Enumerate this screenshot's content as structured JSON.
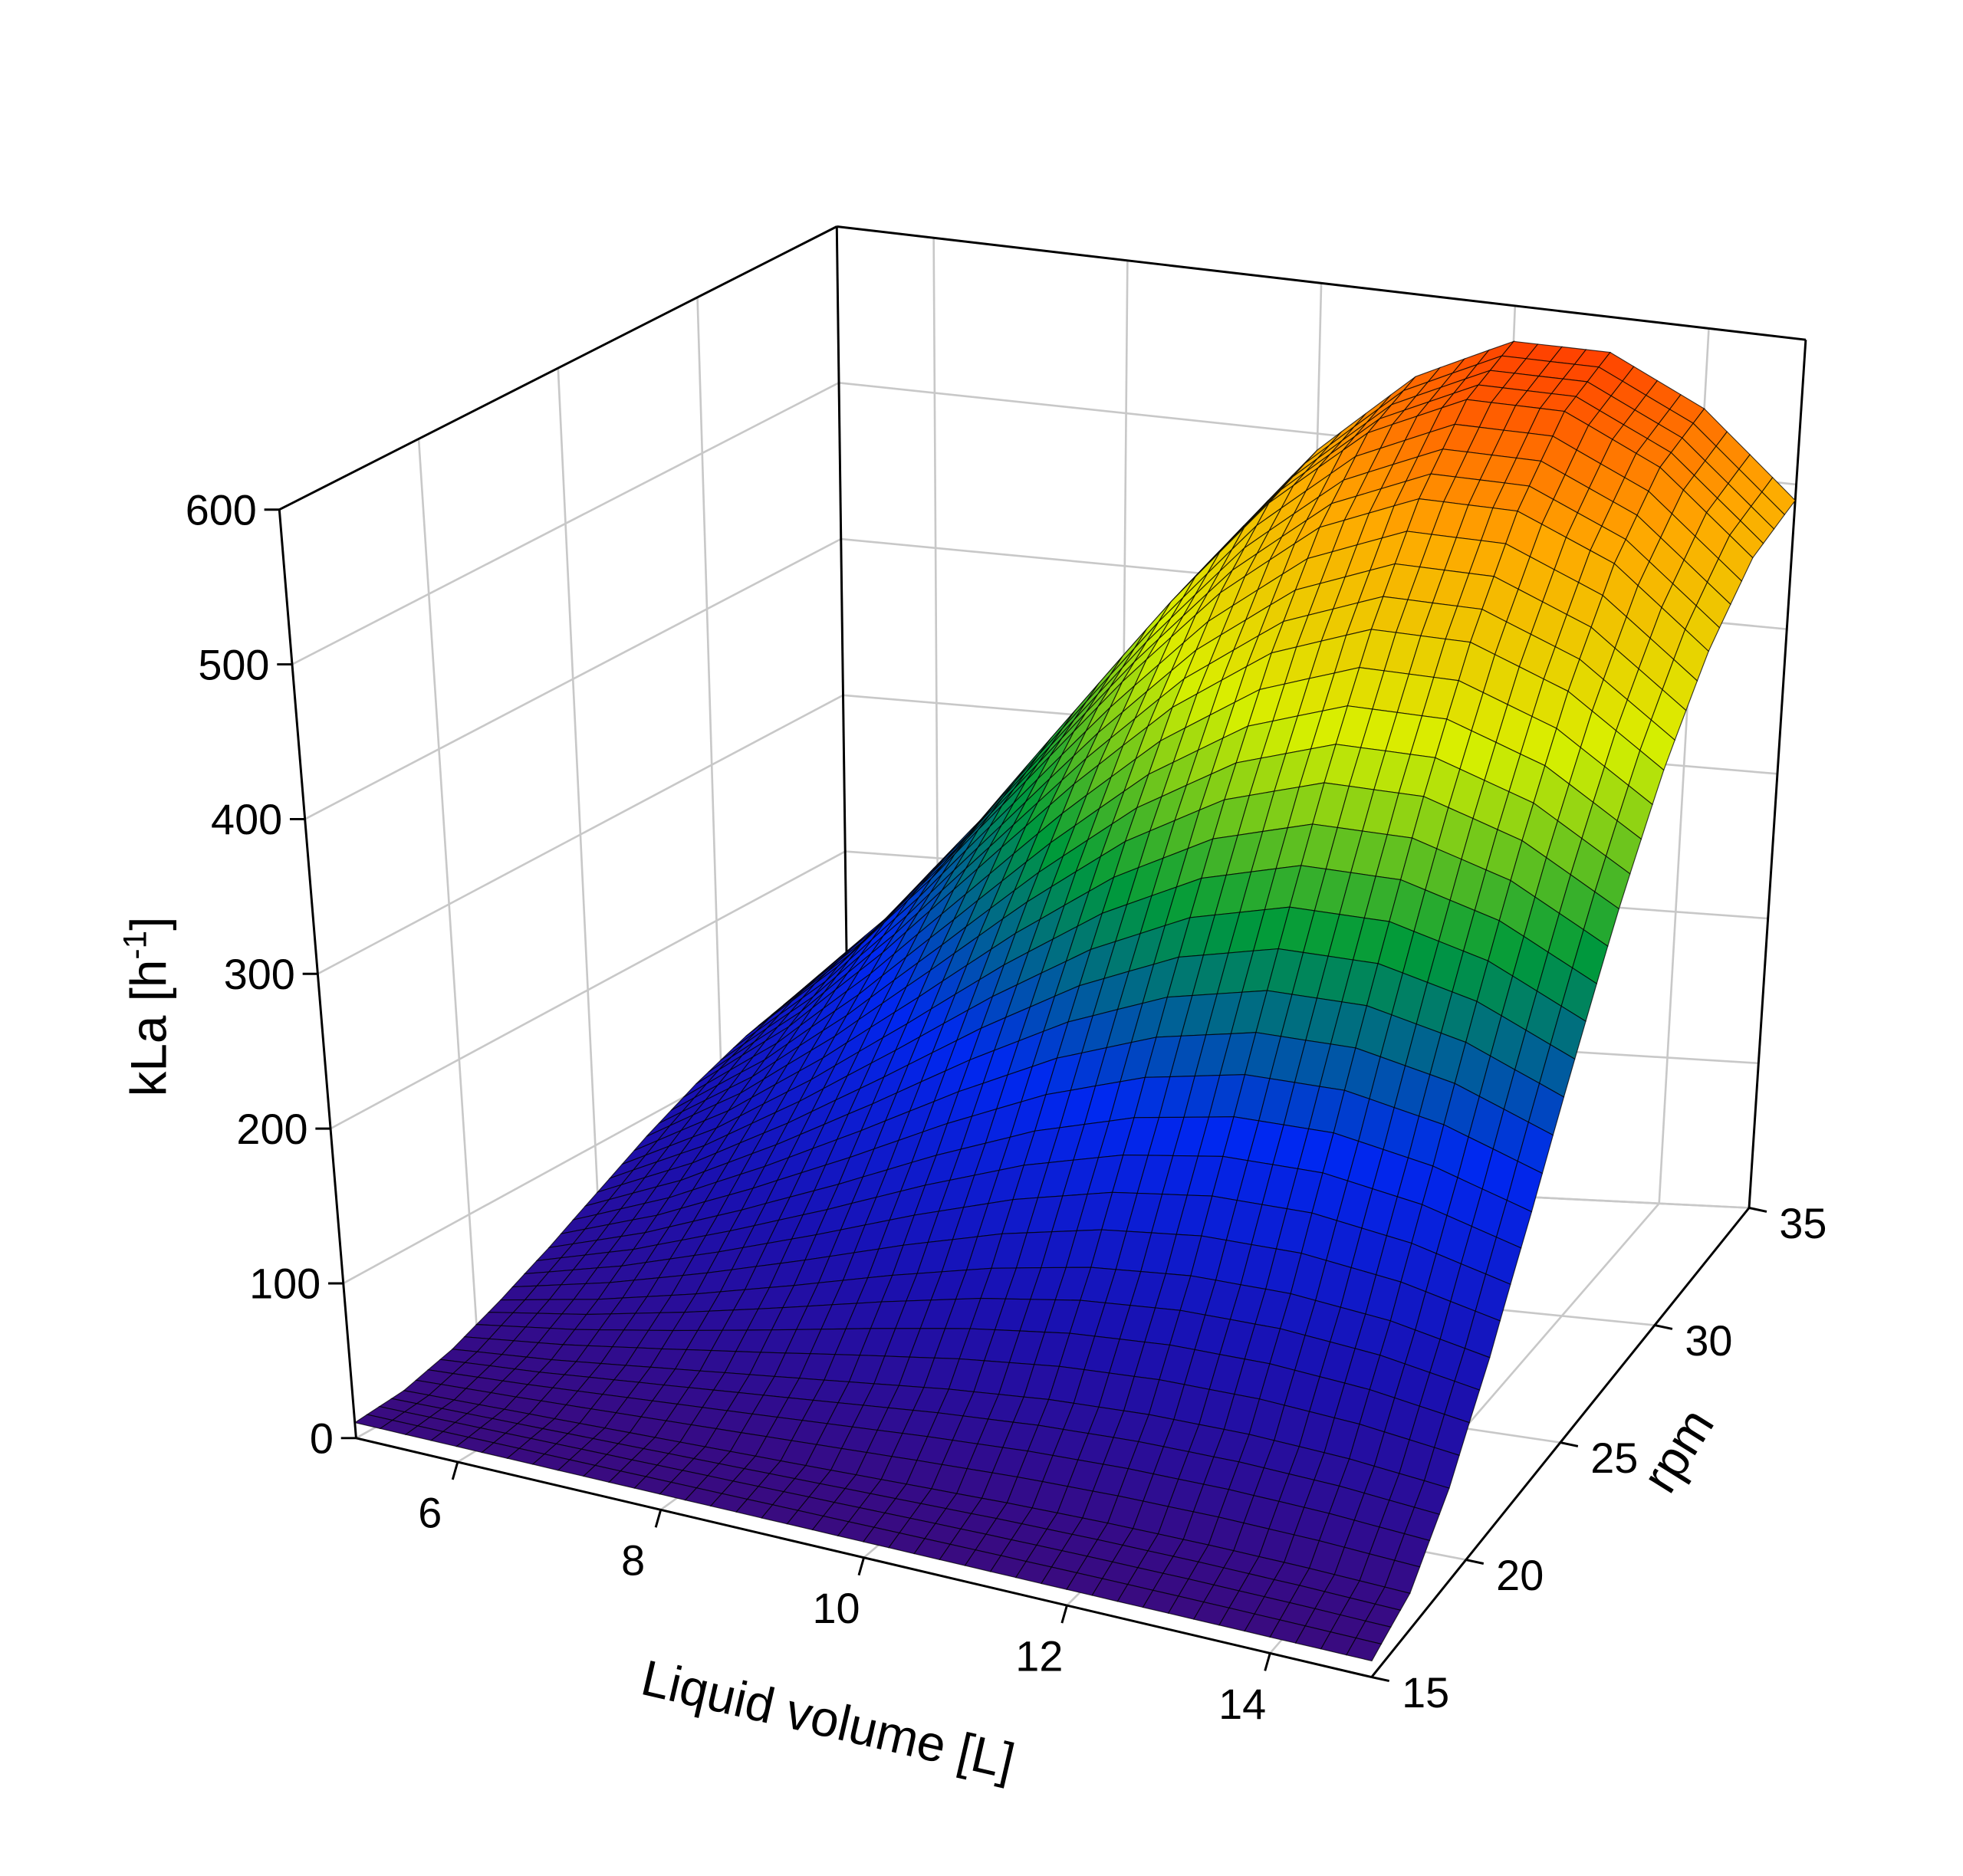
{
  "chart_data": {
    "type": "surface3d",
    "xlabel": "Liquid volume [L]",
    "ylabel": "rpm",
    "zlabel": {
      "text": "kLa [h",
      "superscript": "-1",
      "suffix": "]"
    },
    "x": [
      5,
      6,
      7,
      8,
      9,
      10,
      11,
      12,
      13,
      14,
      15
    ],
    "y": [
      15,
      17,
      19,
      21,
      23,
      25,
      27,
      29,
      31,
      33,
      35
    ],
    "z": [
      [
        10,
        10,
        10,
        10,
        10,
        10,
        10,
        10,
        10,
        10,
        10
      ],
      [
        13,
        15,
        17,
        19,
        21,
        23,
        25,
        26,
        26,
        25,
        23
      ],
      [
        22,
        28,
        36,
        44,
        52,
        60,
        66,
        69,
        69,
        66,
        60
      ],
      [
        36,
        48,
        63,
        80,
        98,
        114,
        126,
        132,
        132,
        126,
        114
      ],
      [
        52,
        72,
        97,
        124,
        153,
        179,
        198,
        209,
        209,
        198,
        179
      ],
      [
        70,
        98,
        133,
        172,
        213,
        250,
        278,
        293,
        293,
        278,
        250
      ],
      [
        88,
        124,
        169,
        220,
        273,
        321,
        357,
        377,
        377,
        357,
        321
      ],
      [
        104,
        148,
        203,
        265,
        328,
        386,
        430,
        454,
        454,
        430,
        386
      ],
      [
        117,
        168,
        231,
        301,
        373,
        439,
        490,
        517,
        517,
        490,
        439
      ],
      [
        126,
        181,
        249,
        326,
        404,
        476,
        530,
        560,
        560,
        530,
        476
      ],
      [
        130,
        186,
        256,
        335,
        416,
        489,
        545,
        576,
        576,
        545,
        489
      ]
    ],
    "xlim": [
      5,
      15
    ],
    "ylim": [
      15,
      35
    ],
    "zlim": [
      0,
      600
    ],
    "xticks": [
      6,
      8,
      10,
      12,
      14
    ],
    "yticks": [
      15,
      20,
      25,
      30,
      35
    ],
    "zticks": [
      0,
      100,
      200,
      300,
      400,
      500,
      600
    ],
    "grid": true,
    "colormap": [
      "#3d0a7a",
      "#1a10b0",
      "#0028f0",
      "#009a3a",
      "#d8f000",
      "#ffa800",
      "#ff2000"
    ],
    "mesh_color": "#000000"
  }
}
